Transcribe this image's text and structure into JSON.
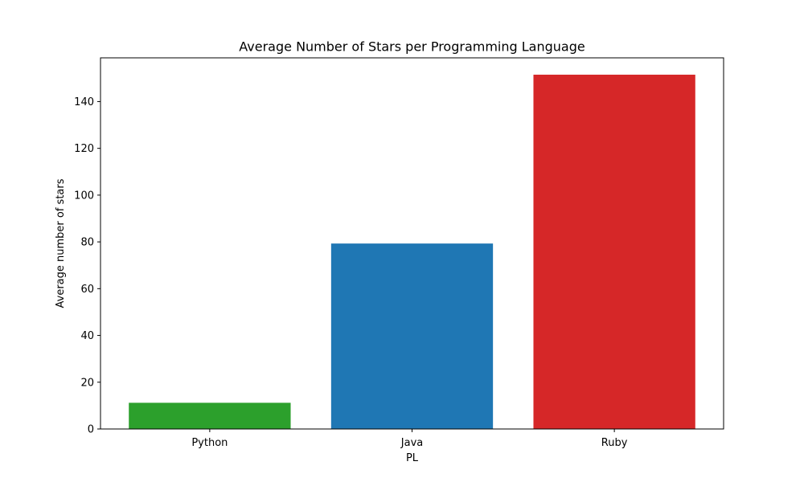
{
  "chart_data": {
    "type": "bar",
    "title": "Average Number of Stars per Programming Language",
    "xlabel": "PL",
    "ylabel": "Average number of stars",
    "categories": [
      "Python",
      "Java",
      "Ruby"
    ],
    "values": [
      11.2,
      79.3,
      151.5
    ],
    "colors": [
      "#2ca02c",
      "#1f77b4",
      "#d62728"
    ],
    "ylim": [
      0,
      158.7
    ],
    "yticks": [
      0,
      20,
      40,
      60,
      80,
      100,
      120,
      140
    ],
    "grid": false,
    "legend": "none"
  }
}
